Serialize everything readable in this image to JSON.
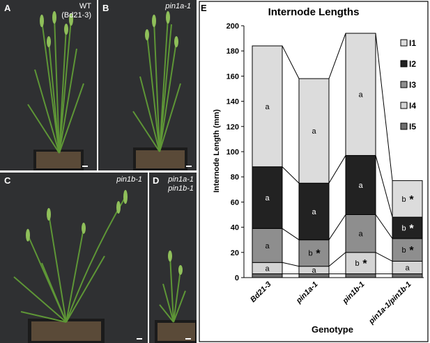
{
  "panels": {
    "A": {
      "letter": "A",
      "caption_lines": [
        "WT",
        "(Bd21-3)"
      ]
    },
    "B": {
      "letter": "B",
      "caption_lines": [
        "pin1a-1"
      ]
    },
    "C": {
      "letter": "C",
      "caption_lines": [
        "pin1b-1"
      ]
    },
    "D": {
      "letter": "D",
      "caption_lines": [
        "pin1a-1",
        "pin1b-1"
      ]
    },
    "E": {
      "letter": "E"
    }
  },
  "colors": {
    "I1": "#dcdcdc",
    "I2": "#222222",
    "I3": "#8e8e8e",
    "I4": "#d4d4d4",
    "I5": "#6e6e6e",
    "photo_bg": "#2f3032",
    "plant_green": "#4f8a2e"
  },
  "chart_data": {
    "type": "bar",
    "stacked": true,
    "title": "Internode Lengths",
    "xlabel": "Genotype",
    "ylabel": "Internode Length (mm)",
    "ylim": [
      0,
      200
    ],
    "yticks": [
      0,
      20,
      40,
      60,
      80,
      100,
      120,
      140,
      160,
      180,
      200
    ],
    "categories": [
      "Bd21-3",
      "pin1a-1",
      "pin1b-1",
      "pin1a-1/pin1b-1"
    ],
    "legend_position": "top-right",
    "series": [
      {
        "name": "I5",
        "values": [
          3,
          3,
          3,
          3
        ],
        "labels": [
          "",
          "",
          "",
          ""
        ]
      },
      {
        "name": "I4",
        "values": [
          9,
          6,
          17,
          10
        ],
        "labels": [
          "a",
          "a",
          "b",
          "a"
        ]
      },
      {
        "name": "I3",
        "values": [
          27,
          21,
          30,
          18
        ],
        "labels": [
          "a",
          "b",
          "a",
          "b"
        ]
      },
      {
        "name": "I2",
        "values": [
          49,
          45,
          47,
          17
        ],
        "labels": [
          "a",
          "a",
          "a",
          "b"
        ]
      },
      {
        "name": "I1",
        "values": [
          96,
          83,
          97,
          29
        ],
        "labels": [
          "a",
          "a",
          "a",
          "b"
        ]
      }
    ],
    "significance": [
      {
        "series": "I3",
        "category": "pin1a-1",
        "mark": "*"
      },
      {
        "series": "I4",
        "category": "pin1b-1",
        "mark": "*"
      },
      {
        "series": "I3",
        "category": "pin1a-1/pin1b-1",
        "mark": "*"
      },
      {
        "series": "I2",
        "category": "pin1a-1/pin1b-1",
        "mark": "*"
      },
      {
        "series": "I1",
        "category": "pin1a-1/pin1b-1",
        "mark": "*"
      }
    ],
    "legend_order": [
      "I1",
      "I2",
      "I3",
      "I4",
      "I5"
    ],
    "grid": false
  }
}
